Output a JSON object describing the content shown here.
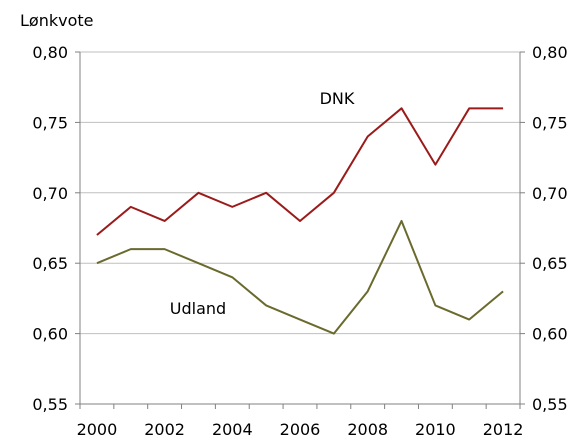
{
  "chart_data": {
    "type": "line",
    "ylabel": "Lønkvote",
    "x": [
      2000,
      2001,
      2002,
      2003,
      2004,
      2005,
      2006,
      2007,
      2008,
      2009,
      2010,
      2011,
      2012
    ],
    "x_tick_labels": [
      "2000",
      "2002",
      "2004",
      "2006",
      "2008",
      "2010",
      "2012"
    ],
    "x_tick_values": [
      2000,
      2002,
      2004,
      2006,
      2008,
      2010,
      2012
    ],
    "ylim": [
      0.55,
      0.8
    ],
    "y_ticks": [
      0.55,
      0.6,
      0.65,
      0.7,
      0.75,
      0.8
    ],
    "y_tick_labels": [
      "0,55",
      "0,60",
      "0,65",
      "0,70",
      "0,75",
      "0,80"
    ],
    "grid": "horizontal",
    "series": [
      {
        "name": "DNK",
        "color": "#9b1b1b",
        "values": [
          0.67,
          0.69,
          0.68,
          0.7,
          0.69,
          0.7,
          0.68,
          0.7,
          0.74,
          0.76,
          0.72,
          0.76,
          0.76
        ]
      },
      {
        "name": "Udland",
        "color": "#6b6a2e",
        "values": [
          0.65,
          0.66,
          0.66,
          0.65,
          0.64,
          0.62,
          0.61,
          0.6,
          0.63,
          0.68,
          0.62,
          0.61,
          0.63
        ]
      }
    ]
  }
}
